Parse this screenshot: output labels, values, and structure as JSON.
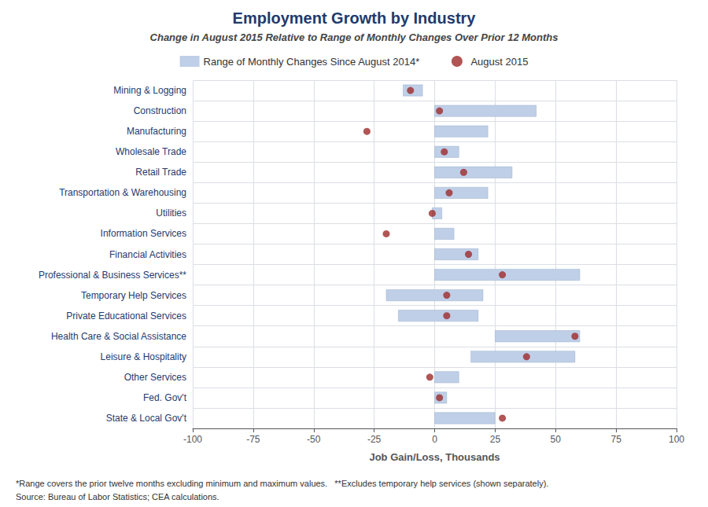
{
  "chart_data": {
    "type": "bar",
    "orientation": "horizontal",
    "title": "Employment Growth by Industry",
    "subtitle": "Change in August 2015 Relative to Range of Monthly Changes Over Prior 12 Months",
    "xlabel": "Job Gain/Loss, Thousands",
    "annotations": [
      "*Range covers the prior twelve months excluding minimum and maximum values.   **Excludes temporary help services (shown separately).",
      "Source: Bureau of Labor Statistics; CEA calculations."
    ],
    "categories": [
      "Mining & Logging",
      "Construction",
      "Manufacturing",
      "Wholesale Trade",
      "Retail Trade",
      "Transportation & Warehousing",
      "Utilities",
      "Information Services",
      "Financial Activities",
      "Professional & Business Services**",
      "Temporary Help Services",
      "Private Educational Services",
      "Health Care & Social Assistance",
      "Leisure & Hospitality",
      "Other Services",
      "Fed. Gov't",
      "State & Local Gov't"
    ],
    "series": [
      {
        "name": "Range of Monthly Changes Since August 2014*",
        "type": "bar",
        "color": "#bfcfe8",
        "values": [
          [
            -13,
            -5
          ],
          [
            0,
            42
          ],
          [
            0,
            22
          ],
          [
            0,
            10
          ],
          [
            0,
            32
          ],
          [
            0,
            22
          ],
          [
            -1,
            3
          ],
          [
            0,
            8
          ],
          [
            0,
            18
          ],
          [
            0,
            60
          ],
          [
            -20,
            20
          ],
          [
            -15,
            18
          ],
          [
            25,
            60
          ],
          [
            15,
            58
          ],
          [
            0,
            10
          ],
          [
            0,
            5
          ],
          [
            0,
            25
          ]
        ]
      },
      {
        "name": "August 2015",
        "type": "scatter",
        "marker": "circle",
        "color": "#9e2a2b",
        "values": [
          -10,
          2,
          -28,
          4,
          12,
          6,
          -1,
          -20,
          14,
          28,
          5,
          5,
          58,
          38,
          -2,
          2,
          28
        ]
      }
    ],
    "xlim": [
      -100,
      100
    ],
    "xticks": [
      -100,
      -75,
      -50,
      -25,
      0,
      25,
      50,
      75,
      100
    ],
    "grid": true,
    "legend": "top"
  }
}
